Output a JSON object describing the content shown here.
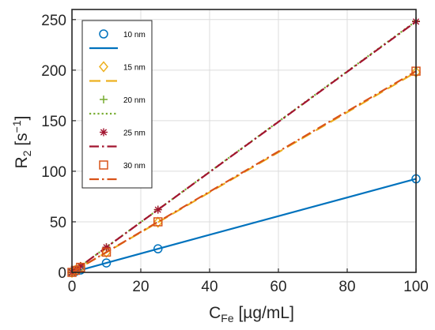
{
  "chart_data": {
    "type": "line",
    "title": "",
    "xlabel": {
      "main": "C",
      "sub": "Fe",
      "rest": " [µg/mL]"
    },
    "ylabel": {
      "main": "R",
      "sub": "2",
      "rest": " [s",
      "sup": "−1",
      "end": "]"
    },
    "xlim": [
      0,
      100
    ],
    "ylim": [
      0,
      260
    ],
    "xticks": [
      0,
      20,
      40,
      60,
      80,
      100
    ],
    "yticks": [
      0,
      50,
      100,
      150,
      200,
      250
    ],
    "grid": true,
    "legend_position": "top-left",
    "x": [
      0,
      1,
      2.5,
      10,
      25,
      100
    ],
    "series": [
      {
        "name": "10 nm",
        "marker": "circle",
        "line": "solid",
        "color": "#0072BD",
        "values": [
          0,
          0.9,
          2.3,
          9.3,
          23.3,
          92.5
        ]
      },
      {
        "name": "15 nm",
        "marker": "diamond",
        "line": "dashed",
        "color": "#EDB120",
        "values": [
          0,
          2.0,
          5.0,
          19.8,
          49.5,
          198
        ]
      },
      {
        "name": "20 nm",
        "marker": "plus",
        "line": "dotted",
        "color": "#77AC30",
        "values": [
          0,
          2.5,
          6.2,
          24.9,
          62.1,
          248.5
        ]
      },
      {
        "name": "25 nm",
        "marker": "asterisk",
        "line": "dashdot",
        "color": "#A2142F",
        "values": [
          0,
          2.5,
          6.2,
          24.8,
          62.0,
          248
        ]
      },
      {
        "name": "30 nm",
        "marker": "square",
        "line": "dashdot",
        "color": "#D95319",
        "values": [
          0,
          2.0,
          5.0,
          20.0,
          50.0,
          199
        ]
      }
    ]
  }
}
